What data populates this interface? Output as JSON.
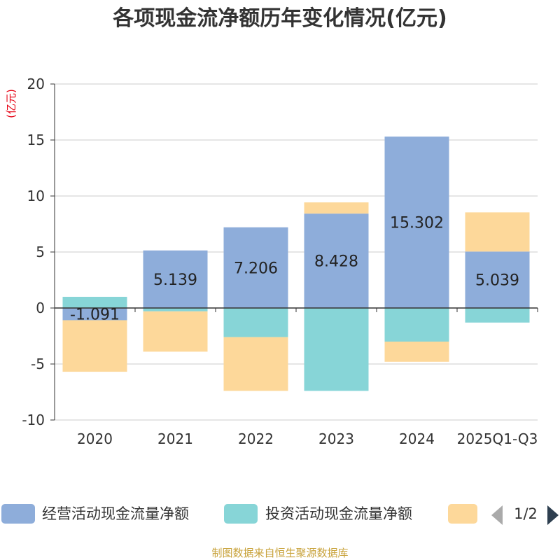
{
  "title": "各项现金流净额历年变化情况(亿元)",
  "footer": "制图数据来自恒生聚源数据库",
  "colors": {
    "operating": "#8eadda",
    "investing": "#87d5d7",
    "financing": "#fdd89a",
    "title": "#333333",
    "ylabel": "#e60012",
    "footer": "#c8a23a",
    "grid": "#cccccc",
    "pager_active": "#2e3f50",
    "pager_inactive": "#aaaaaa"
  },
  "legend": {
    "items": [
      {
        "name": "经营活动现金流量净额",
        "color": "#8eadda"
      },
      {
        "name": "投资活动现金流量净额",
        "color": "#87d5d7"
      },
      {
        "name": "",
        "color": "#fdd89a"
      }
    ],
    "pager": {
      "text": "1/2",
      "prev_icon": "triangle-left-icon",
      "next_icon": "triangle-right-icon"
    }
  },
  "chart_data": {
    "type": "bar",
    "stacked": true,
    "title": "各项现金流净额历年变化情况(亿元)",
    "ylabel": "(亿元)",
    "xlabel": "",
    "ylim": [
      -10,
      20
    ],
    "yticks": [
      20,
      15,
      10,
      5,
      0,
      -5,
      -10
    ],
    "grid": true,
    "legend_position": "bottom",
    "categories": [
      "2020",
      "2021",
      "2022",
      "2023",
      "2024",
      "2025Q1-Q3"
    ],
    "series": [
      {
        "name": "经营活动现金流量净额",
        "key": "operating",
        "values": [
          -1.091,
          5.139,
          7.206,
          8.428,
          15.302,
          5.039
        ],
        "labels": [
          "-1.091",
          "5.139",
          "7.206",
          "8.428",
          "15.302",
          "5.039"
        ]
      },
      {
        "name": "投资活动现金流量净额",
        "key": "investing",
        "values": [
          1.0,
          -0.3,
          -2.6,
          -7.4,
          -3.0,
          -1.3
        ]
      },
      {
        "name": "",
        "key": "financing",
        "values": [
          -4.6,
          -3.6,
          -4.8,
          1.0,
          -1.8,
          3.5
        ]
      }
    ]
  }
}
